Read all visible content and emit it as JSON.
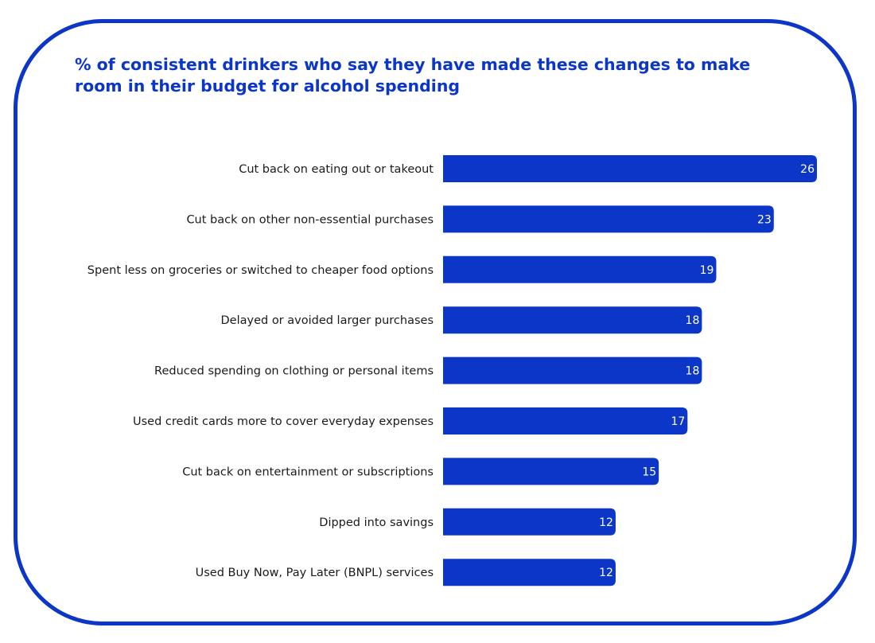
{
  "chart_data": {
    "type": "bar",
    "orientation": "horizontal",
    "title": "% of consistent drinkers who say they have made these changes to make room in their budget for alcohol spending",
    "xlabel": "",
    "ylabel": "",
    "xlim": [
      0,
      26
    ],
    "grid": false,
    "bar_color": "#0b36c8",
    "categories": [
      "Cut back on eating out or takeout",
      "Cut back on other non-essential purchases",
      "Spent less on groceries or switched to cheaper food options",
      "Delayed or avoided larger purchases",
      "Reduced spending on clothing or personal items",
      "Used credit cards more to cover everyday expenses",
      "Cut back on entertainment or subscriptions",
      "Dipped into savings",
      "Used Buy Now, Pay Later (BNPL) services"
    ],
    "values": [
      26,
      23,
      19,
      18,
      18,
      17,
      15,
      12,
      12
    ]
  },
  "colors": {
    "accent": "#0b36c8",
    "bar_label": "#ffffff",
    "category_text": "#1a1a1a"
  }
}
